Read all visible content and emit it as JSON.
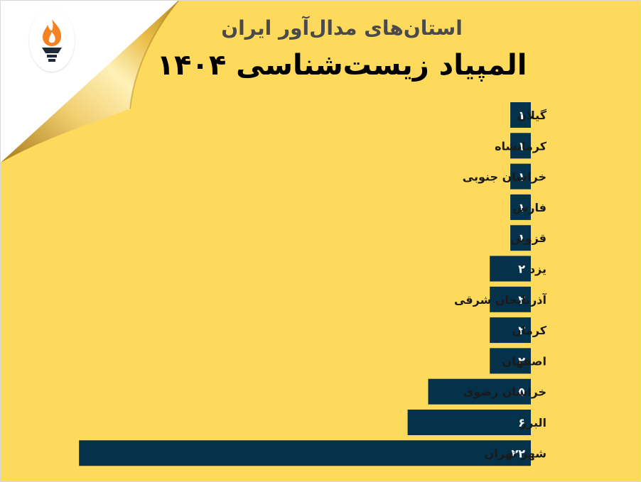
{
  "header": {
    "title_line1": "استان‌های مدال‌آور ایران",
    "title_line2": "المپیاد زیست‌شناسی ۱۴۰۴"
  },
  "logo": {
    "icon": "torch-icon"
  },
  "colors": {
    "background": "#fdd95c",
    "bar": "#04324a",
    "bar_text": "#ffffff",
    "label_text": "#1a1a1a"
  },
  "chart_data": {
    "type": "bar",
    "orientation": "horizontal",
    "categories": [
      "گیلان",
      "کرمانشاه",
      "خراسان جنوبی",
      "فارس",
      "قزوین",
      "یزد",
      "آذربایجان شرقی",
      "کرمان",
      "اصفهان",
      "خراسان رضوی",
      "البرز",
      "شهر تهران"
    ],
    "values": [
      1,
      1,
      1,
      1,
      1,
      2,
      2,
      2,
      2,
      5,
      6,
      22
    ],
    "value_labels": [
      "۱",
      "۱",
      "۱",
      "۱",
      "۱",
      "۲",
      "۲",
      "۲",
      "۲",
      "۵",
      "۶",
      "۲۲"
    ],
    "title": "المپیاد زیست‌شناسی ۱۴۰۴",
    "xlabel": "",
    "ylabel": "",
    "grid": false,
    "legend": "none"
  }
}
